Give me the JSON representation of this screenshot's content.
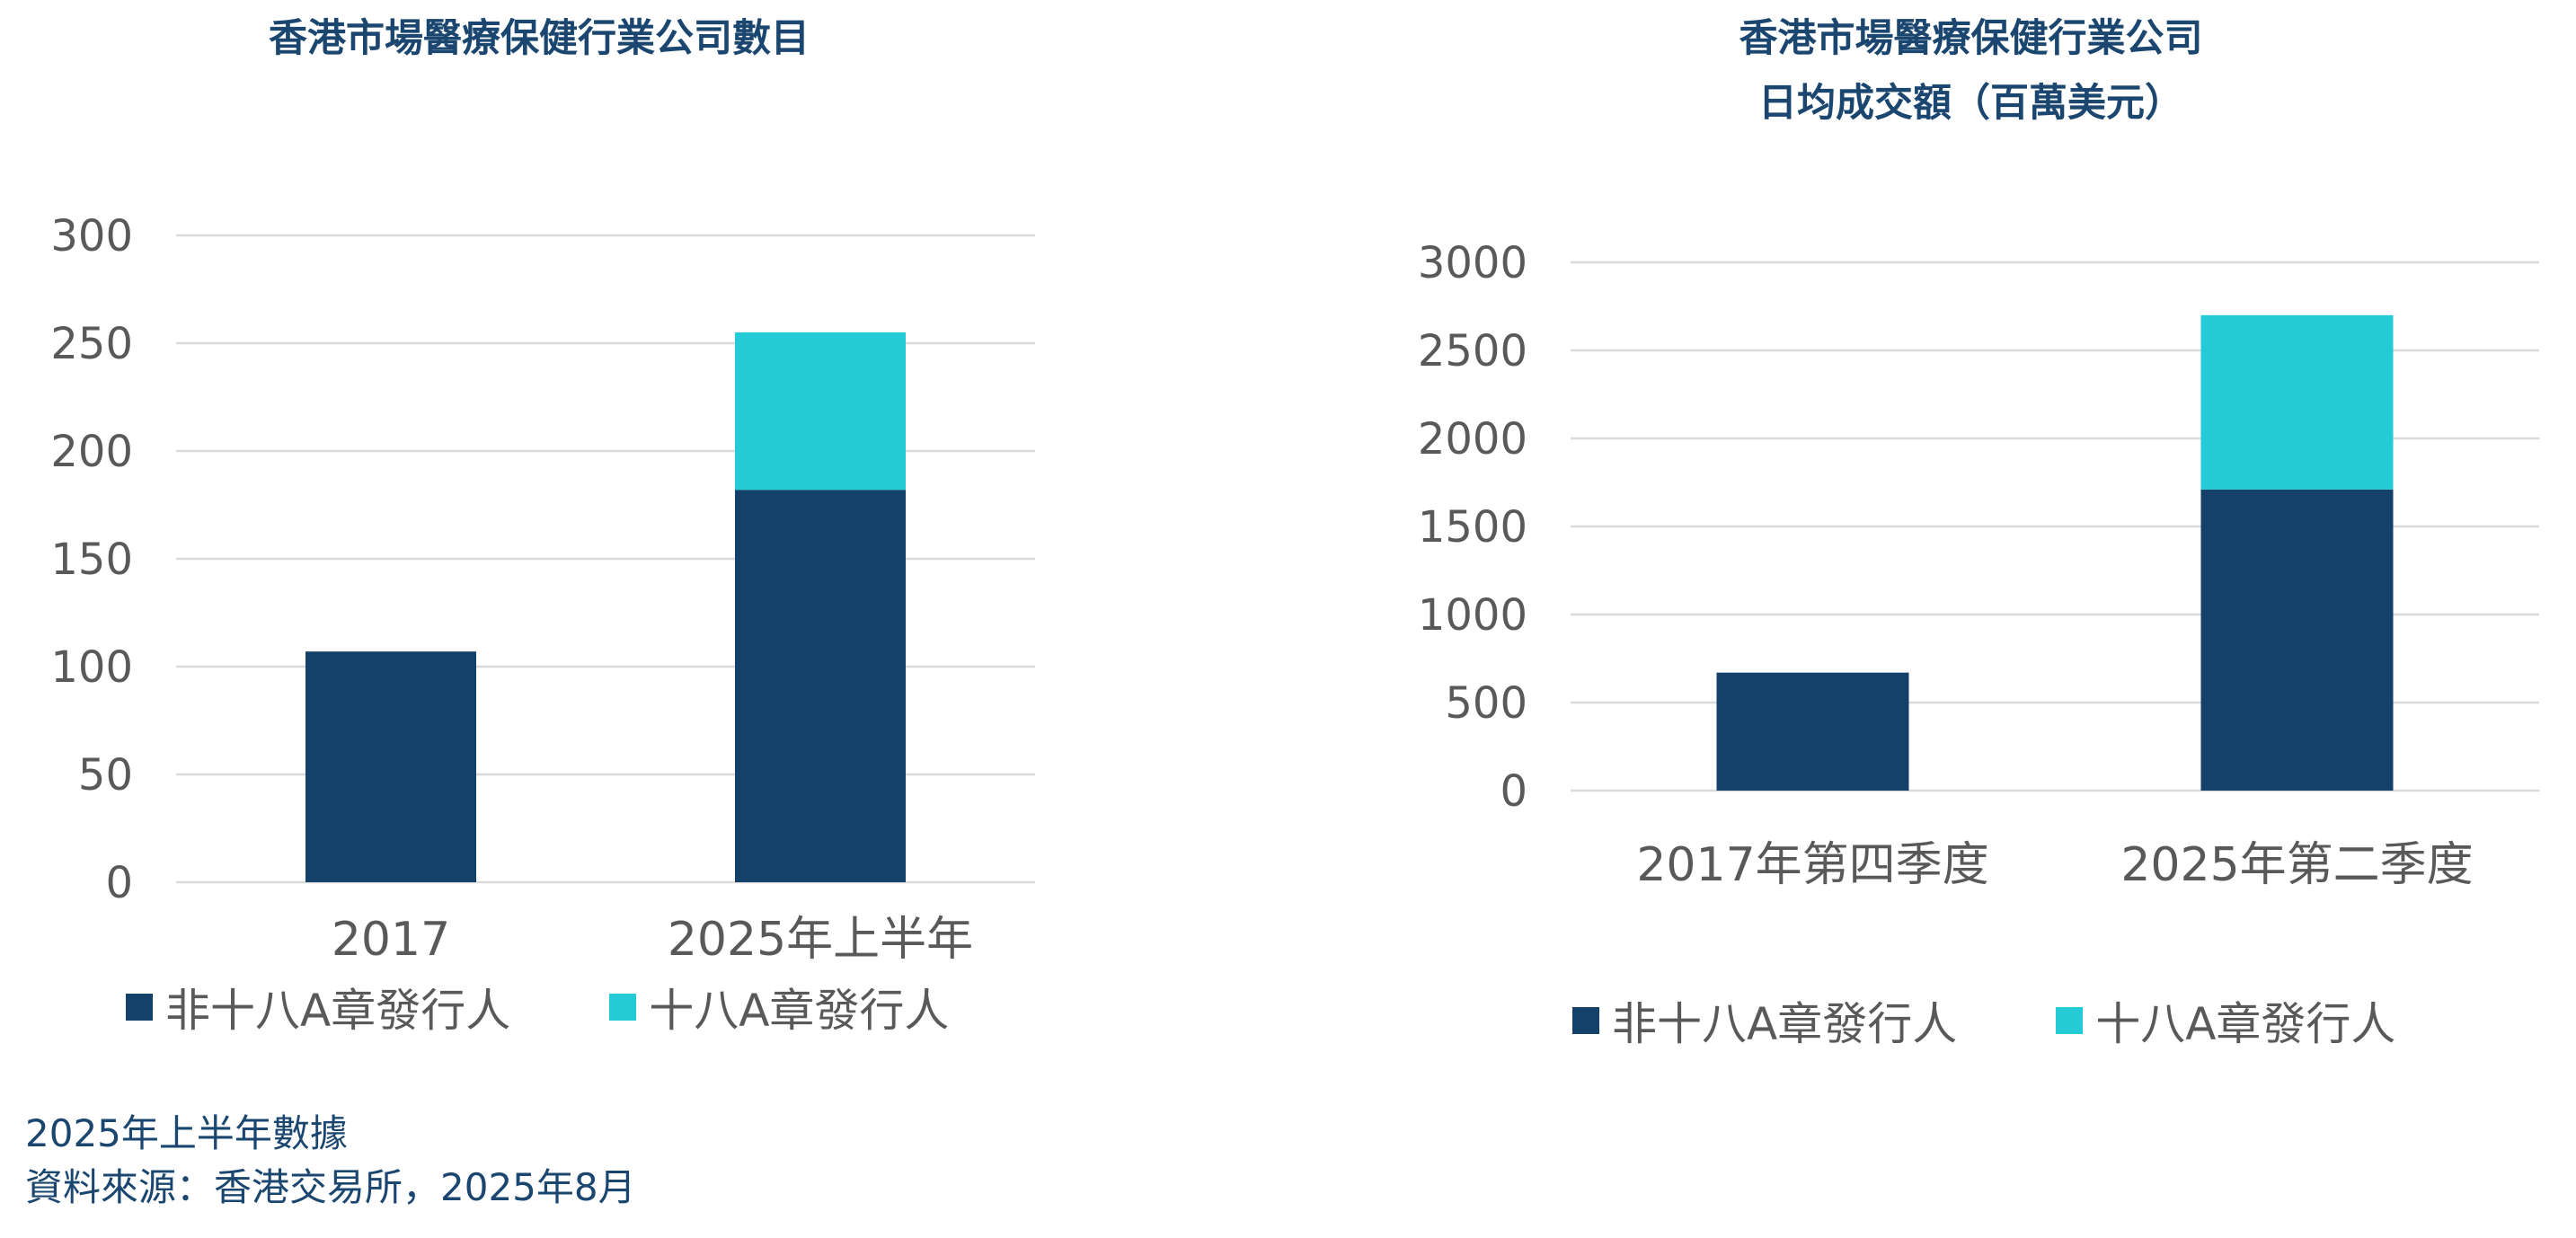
{
  "legend": {
    "series1": "非十八A章發行人",
    "series2": "十八A章發行人"
  },
  "colors": {
    "series1": "#14416a",
    "series2": "#24cad6"
  },
  "footer": {
    "note": "2025年上半年數據",
    "source": "資料來源：香港交易所，2025年8月"
  },
  "chart_data": [
    {
      "type": "bar",
      "stacked": true,
      "title": "香港市場醫療保健行業公司數目",
      "title_line2": "",
      "categories": [
        "2017",
        "2025年上半年"
      ],
      "series": [
        {
          "name": "非十八A章發行人",
          "values": [
            107,
            182
          ]
        },
        {
          "name": "十八A章發行人",
          "values": [
            0,
            73
          ]
        }
      ],
      "yticks": [
        "0",
        "50",
        "100",
        "150",
        "200",
        "250",
        "300"
      ],
      "ylim": [
        0,
        300
      ],
      "grid": true,
      "legend_position": "bottom"
    },
    {
      "type": "bar",
      "stacked": true,
      "title": "香港市場醫療保健行業公司",
      "title_line2": "日均成交額（百萬美元）",
      "categories": [
        "2017年第四季度",
        "2025年第二季度"
      ],
      "series": [
        {
          "name": "非十八A章發行人",
          "values": [
            670,
            1710
          ]
        },
        {
          "name": "十八A章發行人",
          "values": [
            0,
            990
          ]
        }
      ],
      "yticks": [
        "0",
        "500",
        "1000",
        "1500",
        "2000",
        "2500",
        "3000"
      ],
      "ylim": [
        0,
        3000
      ],
      "grid": true,
      "legend_position": "bottom"
    }
  ]
}
